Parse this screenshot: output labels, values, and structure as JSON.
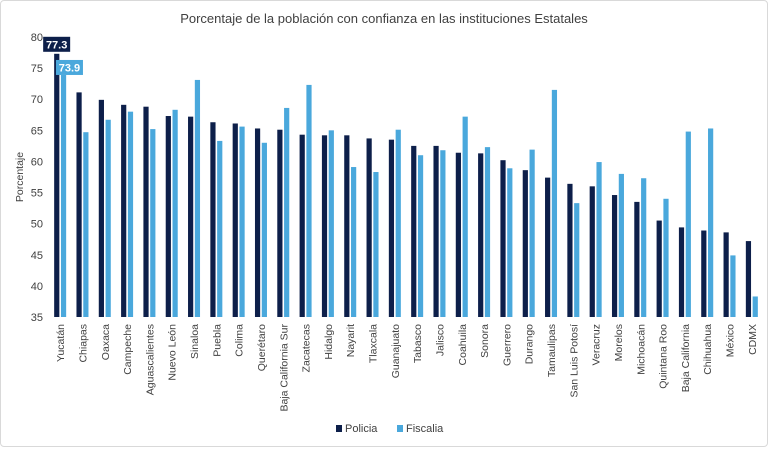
{
  "chart_data": {
    "type": "bar",
    "title": "Porcentaje de la población con confianza en las instituciones Estatales",
    "xlabel": "",
    "ylabel": "Porcentaje",
    "ylim": [
      35,
      80
    ],
    "yticks": [
      35,
      40,
      45,
      50,
      55,
      60,
      65,
      70,
      75,
      80
    ],
    "grid": false,
    "legend_position": "bottom",
    "categories": [
      "Yucatán",
      "Chiapas",
      "Oaxaca",
      "Campeche",
      "Aguascalientes",
      "Nuevo León",
      "Sinaloa",
      "Puebla",
      "Colima",
      "Querétaro",
      "Baja California Sur",
      "Zacatecas",
      "Hidalgo",
      "Nayarit",
      "Tlaxcala",
      "Guanajuato",
      "Tabasco",
      "Jalisco",
      "Coahuila",
      "Sonora",
      "Guerrero",
      "Durango",
      "Tamaulipas",
      "San Luis Potosí",
      "Veracruz",
      "Morelos",
      "Michoacán",
      "Quintana Roo",
      "Baja California",
      "Chihuahua",
      "México",
      "CDMX"
    ],
    "series": [
      {
        "name": "Policia",
        "color": "#0d1f4a",
        "values": [
          77.3,
          71.1,
          69.9,
          69.1,
          68.8,
          67.3,
          67.2,
          66.3,
          66.1,
          65.3,
          65.1,
          64.3,
          64.2,
          64.2,
          63.7,
          63.5,
          62.5,
          62.5,
          61.4,
          61.3,
          60.2,
          58.6,
          57.4,
          56.4,
          56.0,
          54.6,
          53.5,
          50.5,
          49.4,
          48.9,
          48.6,
          47.2
        ]
      },
      {
        "name": "Fiscalia",
        "color": "#4aa8dc",
        "values": [
          73.9,
          64.7,
          66.7,
          68.0,
          65.2,
          68.3,
          73.1,
          63.3,
          65.6,
          63.0,
          68.6,
          72.3,
          65.0,
          59.1,
          58.3,
          65.1,
          61.0,
          61.8,
          67.2,
          62.3,
          58.9,
          61.9,
          71.5,
          53.3,
          59.9,
          58.0,
          57.3,
          54.0,
          64.8,
          65.3,
          44.9,
          38.3
        ]
      }
    ],
    "annotations": [
      {
        "category": "Yucatán",
        "series": "Policia",
        "label": "77.3",
        "color": "#0d1f4a"
      },
      {
        "category": "Yucatán",
        "series": "Fiscalia",
        "label": "73.9",
        "color": "#4aa8dc"
      }
    ]
  }
}
